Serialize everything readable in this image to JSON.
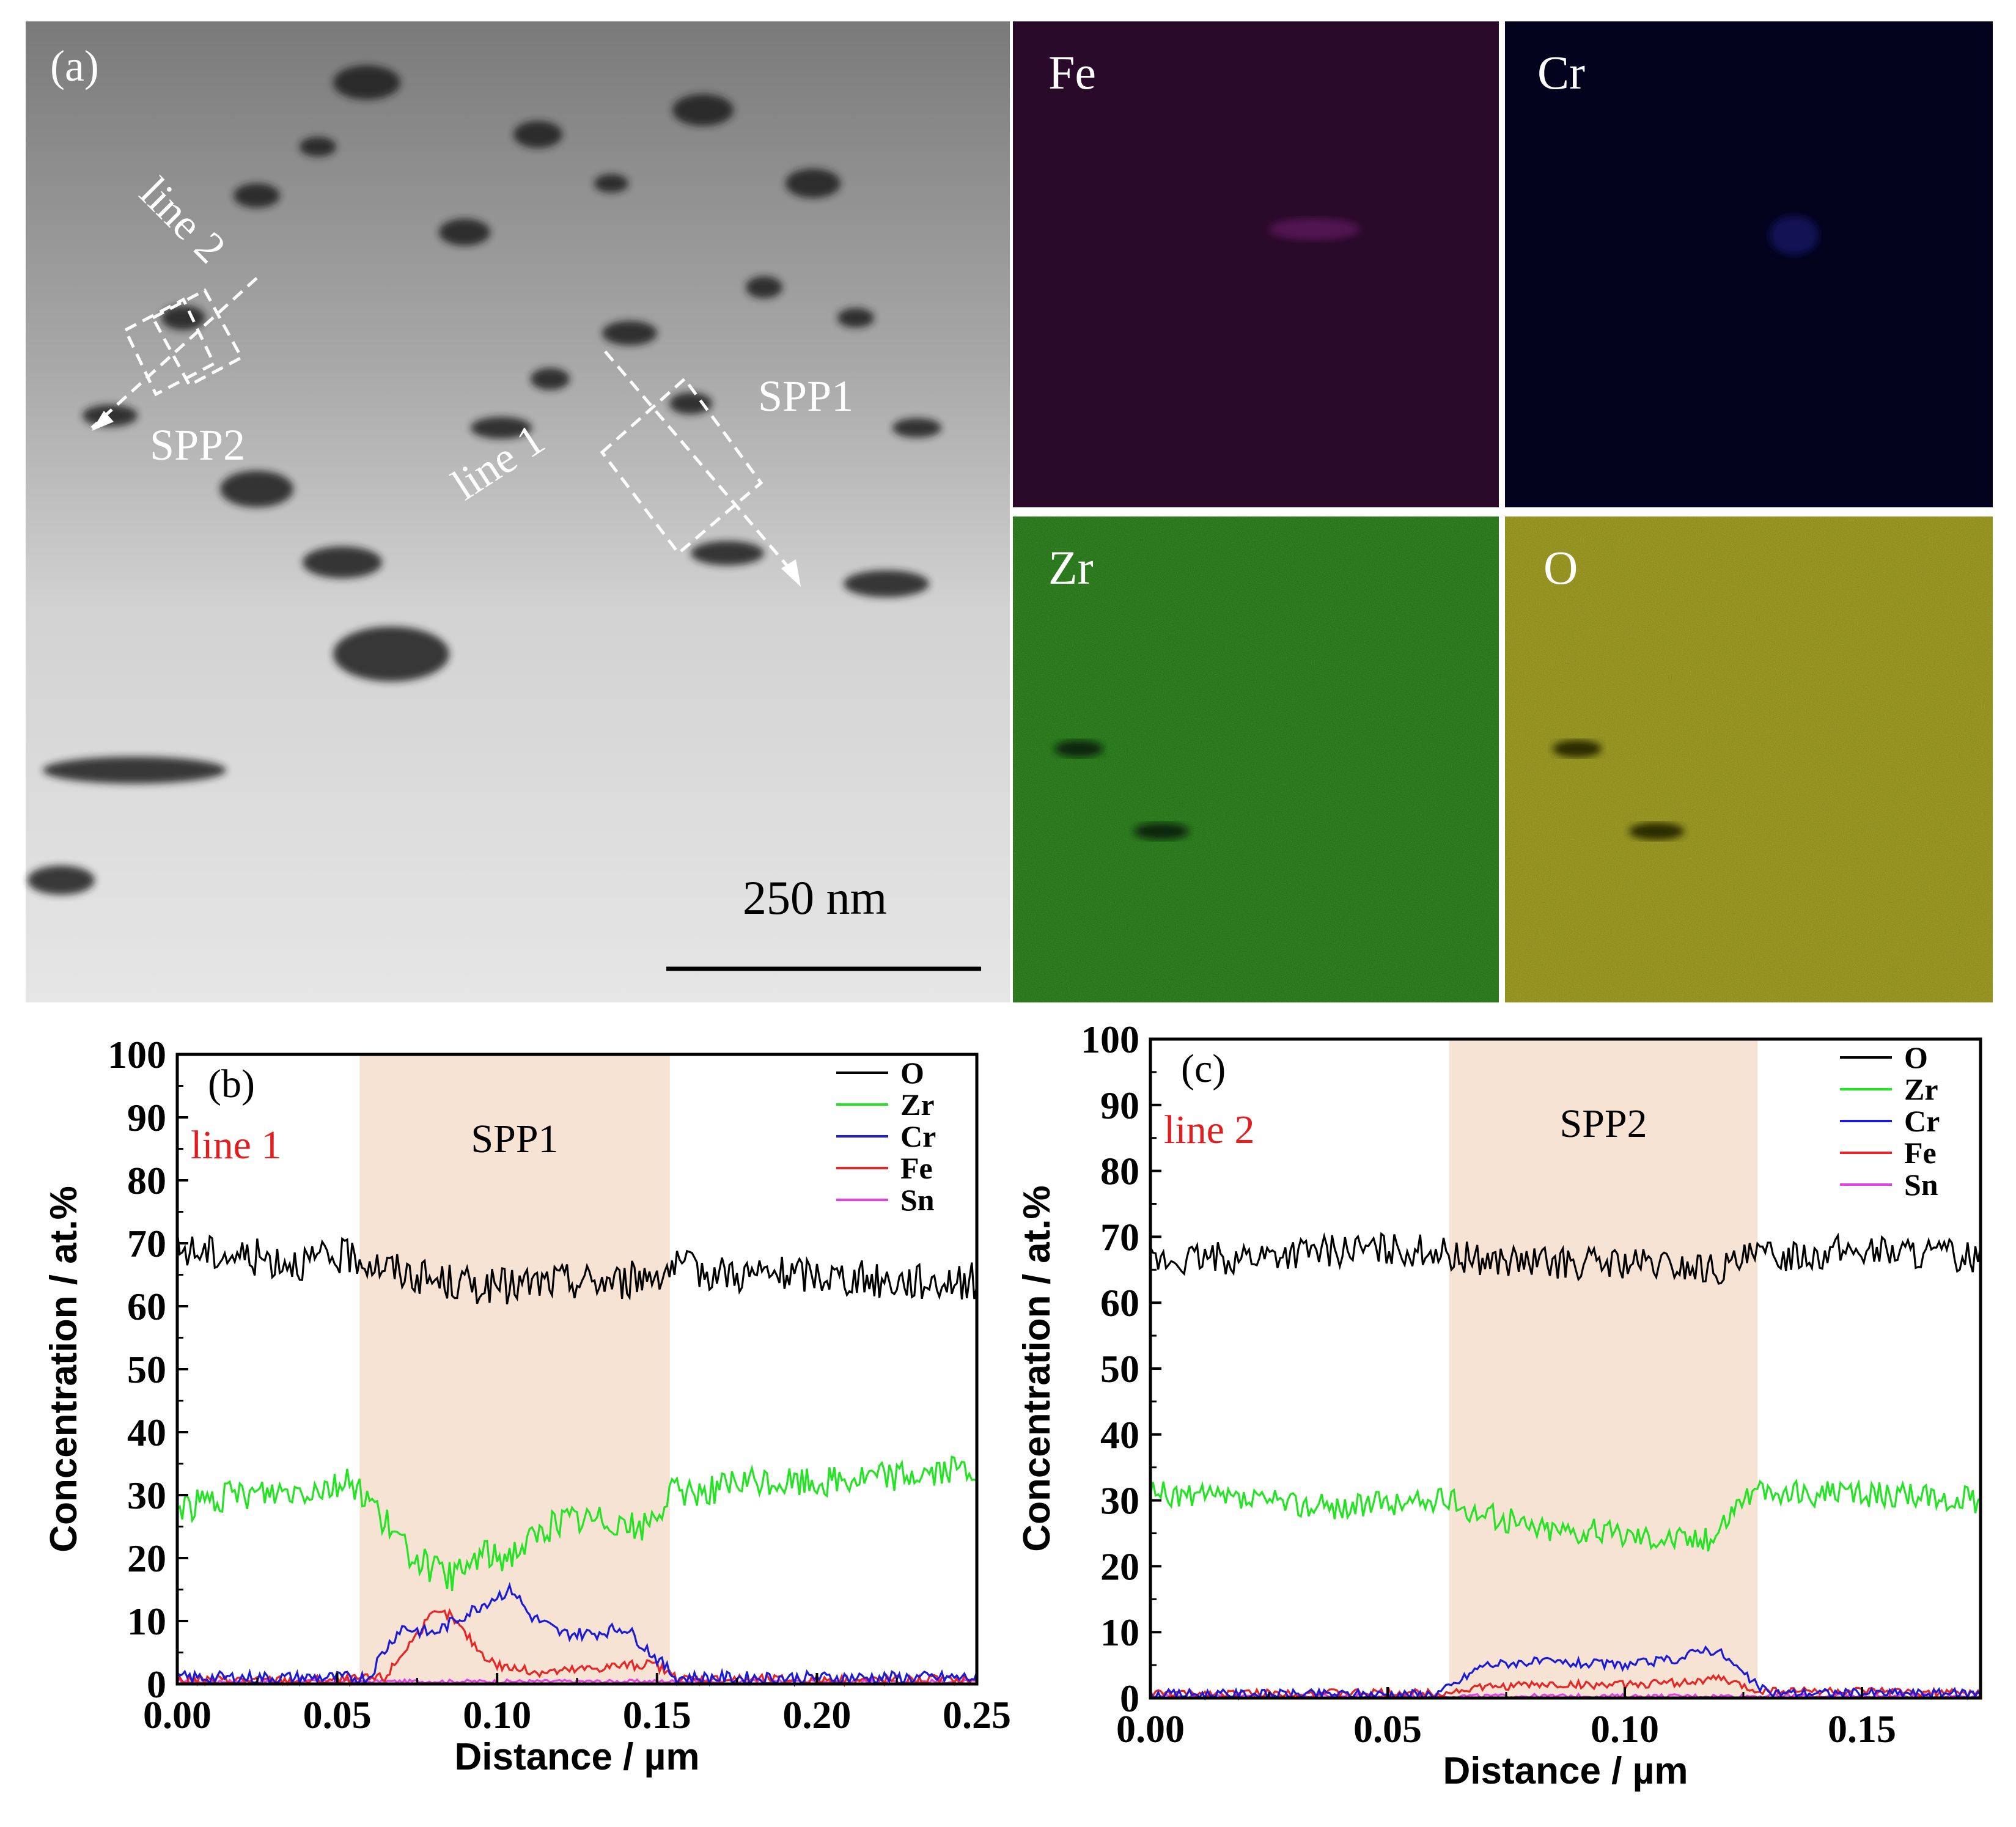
{
  "panel_a": {
    "label": "(a)",
    "scale_bar": "250 nm",
    "annotations": [
      "line 1",
      "line 2",
      "SPP1",
      "SPP2"
    ]
  },
  "maps": [
    {
      "element": "Fe",
      "color": "#2a0a2a"
    },
    {
      "element": "Cr",
      "color": "#03031e"
    },
    {
      "element": "Zr",
      "color": "#1c5f12"
    },
    {
      "element": "O",
      "color": "#7f7d16"
    }
  ],
  "colors": {
    "O": "#000000",
    "Zr": "#22e422",
    "Cr": "#1a1ad8",
    "Fe": "#e82424",
    "Sn": "#e440e4",
    "band": "#f7e3d4"
  },
  "chart_data": [
    {
      "type": "line",
      "panel": "(b)",
      "line_label": "line 1",
      "region_label": "SPP1",
      "region": [
        0.057,
        0.154
      ],
      "xlabel": "Distance / µm",
      "ylabel": "Concentration / at.%",
      "xlim": [
        0,
        0.25
      ],
      "ylim": [
        0,
        100
      ],
      "xticks": [
        "0.00",
        "0.05",
        "0.10",
        "0.15",
        "0.20",
        "0.25"
      ],
      "yticks": [
        "0",
        "10",
        "20",
        "30",
        "40",
        "50",
        "60",
        "70",
        "80",
        "90",
        "100"
      ],
      "legend": [
        "O",
        "Zr",
        "Cr",
        "Fe",
        "Sn"
      ],
      "series": [
        {
          "name": "O",
          "x": [
            0,
            0.02,
            0.04,
            0.056,
            0.06,
            0.08,
            0.1,
            0.12,
            0.14,
            0.154,
            0.18,
            0.2,
            0.22,
            0.25
          ],
          "values": [
            69,
            68,
            67,
            68,
            67,
            64,
            63,
            64,
            64,
            66,
            65,
            65,
            64,
            64
          ],
          "noise": 3
        },
        {
          "name": "Zr",
          "x": [
            0,
            0.02,
            0.04,
            0.055,
            0.057,
            0.062,
            0.07,
            0.08,
            0.085,
            0.09,
            0.095,
            0.1,
            0.105,
            0.12,
            0.14,
            0.144,
            0.15,
            0.154,
            0.18,
            0.2,
            0.22,
            0.25
          ],
          "values": [
            28,
            30,
            31,
            32,
            31,
            28,
            22,
            18,
            17,
            18,
            21,
            20,
            21,
            26,
            26,
            24,
            27,
            30,
            32,
            32,
            33,
            34
          ],
          "noise": 2.5
        },
        {
          "name": "Cr",
          "x": [
            0,
            0.05,
            0.06,
            0.063,
            0.07,
            0.08,
            0.09,
            0.1,
            0.105,
            0.11,
            0.12,
            0.13,
            0.14,
            0.15,
            0.156,
            0.2,
            0.25
          ],
          "values": [
            1,
            1,
            1,
            4,
            9,
            8,
            11,
            14,
            15,
            11,
            8,
            8,
            9,
            4,
            1,
            1,
            1
          ],
          "noise": 1
        },
        {
          "name": "Fe",
          "x": [
            0,
            0.05,
            0.065,
            0.072,
            0.08,
            0.085,
            0.09,
            0.095,
            0.1,
            0.11,
            0.12,
            0.14,
            0.15,
            0.156,
            0.25
          ],
          "values": [
            0.6,
            0.6,
            1,
            6,
            11,
            11,
            8,
            5,
            3,
            2,
            2,
            3,
            3,
            0.8,
            0.6
          ],
          "noise": 0.8
        },
        {
          "name": "Sn",
          "x": [
            0,
            0.25
          ],
          "values": [
            0.4,
            0.4
          ],
          "noise": 0.3
        }
      ]
    },
    {
      "type": "line",
      "panel": "(c)",
      "line_label": "line 2",
      "region_label": "SPP2",
      "region": [
        0.063,
        0.128
      ],
      "xlabel": "Distance / µm",
      "ylabel": "Concentration / at.%",
      "xlim": [
        0,
        0.175
      ],
      "ylim": [
        0,
        100
      ],
      "xticks": [
        "0.00",
        "0.05",
        "0.10",
        "0.15"
      ],
      "yticks": [
        "0",
        "10",
        "20",
        "30",
        "40",
        "50",
        "60",
        "70",
        "80",
        "90",
        "100"
      ],
      "legend": [
        "O",
        "Zr",
        "Cr",
        "Fe",
        "Sn"
      ],
      "series": [
        {
          "name": "O",
          "x": [
            0,
            0.02,
            0.04,
            0.06,
            0.063,
            0.08,
            0.1,
            0.12,
            0.128,
            0.15,
            0.175
          ],
          "values": [
            66,
            67,
            68,
            68,
            67,
            66,
            66,
            65,
            67,
            68,
            67
          ],
          "noise": 2.5
        },
        {
          "name": "Zr",
          "x": [
            0,
            0.02,
            0.04,
            0.06,
            0.063,
            0.07,
            0.08,
            0.1,
            0.118,
            0.12,
            0.125,
            0.128,
            0.15,
            0.175
          ],
          "values": [
            31,
            30,
            29,
            30,
            30,
            28,
            26,
            25,
            24,
            26,
            31,
            31,
            31,
            30
          ],
          "noise": 2
        },
        {
          "name": "Cr",
          "x": [
            0,
            0.06,
            0.064,
            0.07,
            0.08,
            0.1,
            0.112,
            0.116,
            0.12,
            0.126,
            0.13,
            0.175
          ],
          "values": [
            0.6,
            0.6,
            2,
            5,
            5.5,
            5,
            6,
            7.5,
            7,
            3,
            0.8,
            0.7
          ],
          "noise": 0.7
        },
        {
          "name": "Fe",
          "x": [
            0,
            0.063,
            0.068,
            0.08,
            0.1,
            0.115,
            0.12,
            0.127,
            0.175
          ],
          "values": [
            0.7,
            0.8,
            1.5,
            2,
            2,
            2.5,
            3,
            1.2,
            0.7
          ],
          "noise": 0.6
        },
        {
          "name": "Sn",
          "x": [
            0,
            0.175
          ],
          "values": [
            0.3,
            0.3
          ],
          "noise": 0.3
        }
      ]
    }
  ]
}
